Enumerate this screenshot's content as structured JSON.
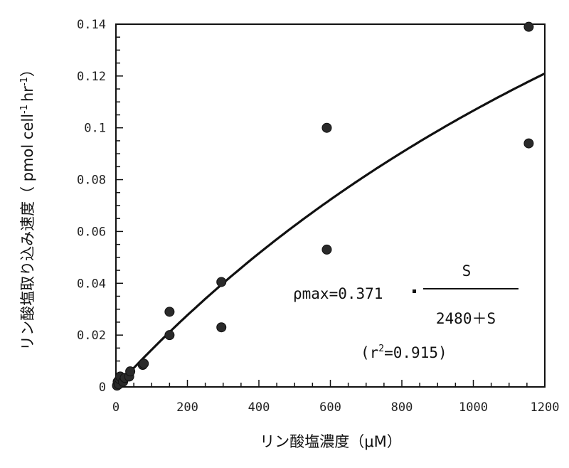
{
  "chart_data": {
    "type": "scatter",
    "xlabel": "リン酸塩濃度（μM）",
    "ylabel": "リン酸塩取り込み速度（ pmol cell",
    "ylabel_unit_rest": "hr",
    "ylabel_sup1": "-1",
    "ylabel_sup2": "-1",
    "ylabel_close": "）",
    "xlim": [
      0,
      1200
    ],
    "ylim": [
      0,
      0.14
    ],
    "xticks": [
      0,
      200,
      400,
      600,
      800,
      1000,
      1200
    ],
    "xtick_labels": [
      "0",
      "200",
      "400",
      "600",
      "800",
      "1000",
      "1200"
    ],
    "yticks": [
      0,
      0.02,
      0.04,
      0.06,
      0.08,
      0.1,
      0.12,
      0.14
    ],
    "ytick_labels": [
      "0",
      "0.02",
      "0.04",
      "0.06",
      "0.08",
      "0.1",
      "0.12",
      "0.14"
    ],
    "x_minor_step": 50,
    "y_minor_step": 0.005,
    "grid": false,
    "points": [
      {
        "x": 3,
        "y": 0.0005
      },
      {
        "x": 5,
        "y": 0.002
      },
      {
        "x": 8,
        "y": 0.001
      },
      {
        "x": 10,
        "y": 0.003
      },
      {
        "x": 12,
        "y": 0.004
      },
      {
        "x": 20,
        "y": 0.002
      },
      {
        "x": 25,
        "y": 0.0035
      },
      {
        "x": 37,
        "y": 0.004
      },
      {
        "x": 40,
        "y": 0.006
      },
      {
        "x": 75,
        "y": 0.0085
      },
      {
        "x": 78,
        "y": 0.009
      },
      {
        "x": 150,
        "y": 0.029
      },
      {
        "x": 150,
        "y": 0.02
      },
      {
        "x": 295,
        "y": 0.0405
      },
      {
        "x": 295,
        "y": 0.023
      },
      {
        "x": 590,
        "y": 0.1
      },
      {
        "x": 590,
        "y": 0.053
      },
      {
        "x": 1155,
        "y": 0.139
      },
      {
        "x": 1155,
        "y": 0.094
      }
    ],
    "fit": {
      "model": "michaelis-menten",
      "rho_max": 0.371,
      "K": 2480,
      "x_range": [
        0,
        1200
      ]
    },
    "equation": {
      "lhs": "ρmax=0.371",
      "numerator": "S",
      "denominator": "2480＋S",
      "r2_prefix": "(r",
      "r2_sup": "2",
      "r2_suffix": "=0.915)"
    }
  }
}
